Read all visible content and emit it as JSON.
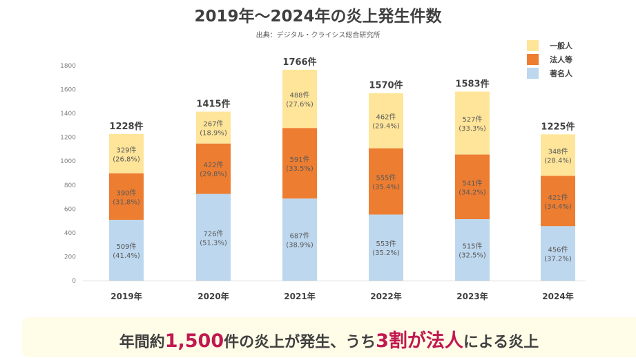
{
  "header": {
    "title": "2019年〜2024年の炎上発生件数",
    "source": "出典：デジタル・クライシス総合研究所"
  },
  "colors": {
    "general": "#ffe599",
    "corporate": "#ed7d31",
    "celebrity": "#bdd7ee",
    "highlight": "#c0184f",
    "callout_bg": "#fffde8"
  },
  "chart_data": {
    "type": "bar",
    "stacked": true,
    "title": "2019年〜2024年の炎上発生件数",
    "subtitle": "出典：デジタル・クライシス総合研究所",
    "xlabel": "",
    "ylabel": "",
    "categories": [
      "2019年",
      "2020年",
      "2021年",
      "2022年",
      "2023年",
      "2024年"
    ],
    "ylim": [
      0,
      1800
    ],
    "yticks": [
      0,
      200,
      400,
      600,
      800,
      1000,
      1200,
      1400,
      1600,
      1800
    ],
    "grid": false,
    "legend": "top-right",
    "series": [
      {
        "name": "著名人",
        "color": "#bdd7ee",
        "values": [
          509,
          726,
          687,
          553,
          515,
          456
        ],
        "labels": [
          "509件",
          "726件",
          "687件",
          "553件",
          "515件",
          "456件"
        ],
        "percents": [
          "(41.4%)",
          "(51.3%)",
          "(38.9%)",
          "(35.2%)",
          "(32.5%)",
          "(37.2%)"
        ]
      },
      {
        "name": "法人等",
        "color": "#ed7d31",
        "values": [
          390,
          422,
          591,
          555,
          541,
          421
        ],
        "labels": [
          "390件",
          "422件",
          "591件",
          "555件",
          "541件",
          "421件"
        ],
        "percents": [
          "(31.8%)",
          "(29.8%)",
          "(33.5%)",
          "(35.4%)",
          "(34.2%)",
          "(34.4%)"
        ]
      },
      {
        "name": "一般人",
        "color": "#ffe599",
        "values": [
          329,
          267,
          488,
          462,
          527,
          348
        ],
        "labels": [
          "329件",
          "267件",
          "488件",
          "462件",
          "527件",
          "348件"
        ],
        "percents": [
          "(26.8%)",
          "(18.9%)",
          "(27.6%)",
          "(29.4%)",
          "(33.3%)",
          "(28.4%)"
        ]
      }
    ],
    "totals": [
      1228,
      1415,
      1766,
      1570,
      1583,
      1225
    ],
    "total_labels": [
      "1228件",
      "1415件",
      "1766件",
      "1570件",
      "1583件",
      "1225件"
    ],
    "legend_order": [
      "一般人",
      "法人等",
      "著名人"
    ]
  },
  "callout": {
    "part1": "年間約",
    "highlight1": "1,500",
    "part2": "件の炎上が発生、うち",
    "highlight2": "3割が法人",
    "part3": "による炎上"
  }
}
